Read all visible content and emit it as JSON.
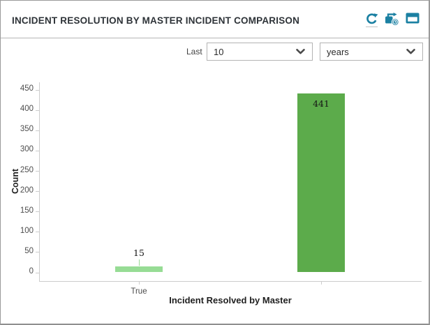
{
  "panel": {
    "title": "INCIDENT RESOLUTION BY MASTER INCIDENT COMPARISON"
  },
  "toolbar": {
    "accent_color": "#1b80a2",
    "icons": [
      {
        "name": "refresh-icon"
      },
      {
        "name": "scheduled-refresh-icon"
      },
      {
        "name": "open-window-icon"
      }
    ]
  },
  "filters": {
    "last_label": "Last",
    "count_value": "10",
    "unit_value": "years"
  },
  "chart_data": {
    "type": "bar",
    "categories": [
      "True",
      ""
    ],
    "values": [
      15,
      441
    ],
    "bar_colors": [
      "#97dc95",
      "#5cab4b"
    ],
    "title": "",
    "xlabel": "Incident Resolved by Master",
    "ylabel": "Count",
    "ylim": [
      0,
      450
    ],
    "ytick_step": 50,
    "yticks": [
      0,
      50,
      100,
      150,
      200,
      250,
      300,
      350,
      400,
      450
    ],
    "grid": false,
    "legend_position": "none"
  }
}
